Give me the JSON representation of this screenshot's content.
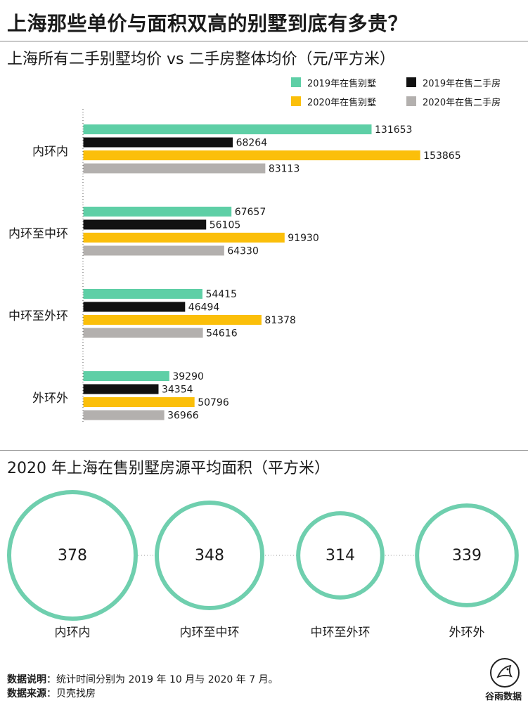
{
  "title": "上海那些单价与面积双高的别墅到底有多贵？",
  "colors": {
    "2019年在售别墅": "#5ecfa6",
    "2019年在售二手房": "#111111",
    "2020年在售别墅": "#fbbf0a",
    "2020年在售二手房": "#b3b0ae",
    "circle_stroke": "#6fcfae"
  },
  "legend": [
    {
      "label": "2019年在售别墅",
      "color": "#5ecfa6"
    },
    {
      "label": "2019年在售二手房",
      "color": "#111111"
    },
    {
      "label": "2020年在售别墅",
      "color": "#fbbf0a"
    },
    {
      "label": "2020年在售二手房",
      "color": "#b3b0ae"
    }
  ],
  "chart_data": [
    {
      "type": "bar",
      "orientation": "horizontal",
      "title": "上海所有二手别墅均价 vs 二手房整体均价（元/平方米）",
      "categories": [
        "内环内",
        "内环至中环",
        "中环至外环",
        "外环外"
      ],
      "series": [
        {
          "name": "2019年在售别墅",
          "color": "#5ecfa6",
          "values": [
            131653,
            67657,
            54415,
            39290
          ]
        },
        {
          "name": "2019年在售二手房",
          "color": "#111111",
          "values": [
            68264,
            56105,
            46494,
            34354
          ]
        },
        {
          "name": "2020年在售别墅",
          "color": "#fbbf0a",
          "values": [
            153865,
            91930,
            81378,
            50796
          ]
        },
        {
          "name": "2020年在售二手房",
          "color": "#b3b0ae",
          "values": [
            83113,
            64330,
            54616,
            36966
          ]
        }
      ],
      "xlim": [
        0,
        200000
      ],
      "legend_position": "top-right",
      "grid": false
    },
    {
      "type": "bubble",
      "title": "2020 年上海在售别墅房源平均面积（平方米）",
      "categories": [
        "内环内",
        "内环至中环",
        "中环至外环",
        "外环外"
      ],
      "values": [
        378,
        348,
        314,
        339
      ]
    }
  ],
  "footer": {
    "note_label": "数据说明",
    "note_text": "：统计时间分别为 2019 年 10 月与 2020 年 7 月。",
    "source_label": "数据来源",
    "source_text": "：贝壳找房"
  },
  "brand": "谷雨数据"
}
